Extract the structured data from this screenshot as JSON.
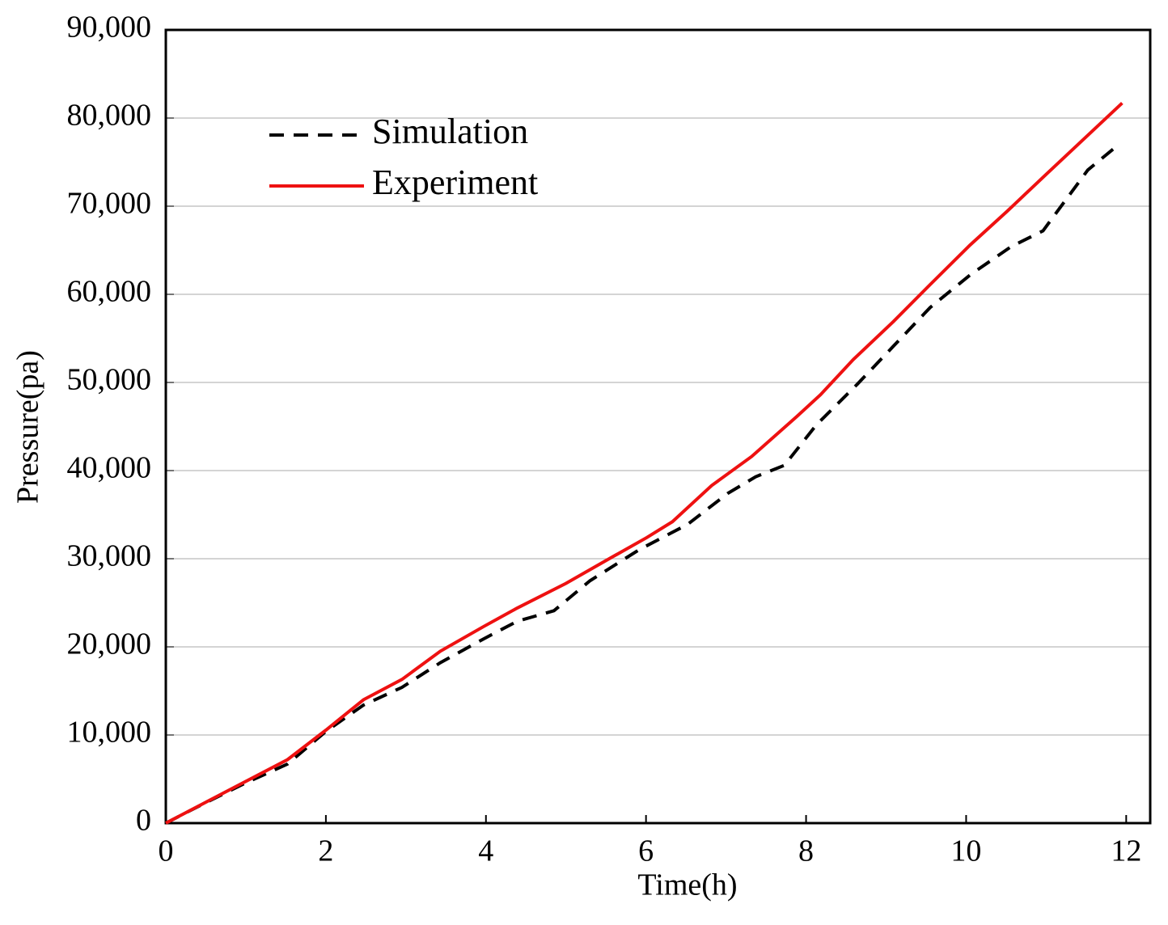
{
  "chart_data": {
    "type": "line",
    "x_label": "Time(h)",
    "y_label": "Pressure(pa)",
    "xlim": [
      0,
      12.3
    ],
    "xticks": [
      0,
      2,
      4,
      6,
      8,
      10,
      12
    ],
    "ylim": [
      0,
      90000
    ],
    "yticks": [
      0,
      {
        "value": 10000,
        "label": "10,000"
      },
      {
        "value": 20000,
        "label": "20,000"
      },
      {
        "value": 30000,
        "label": "30,000"
      },
      {
        "value": 40000,
        "label": "40,000"
      },
      {
        "value": 50000,
        "label": "50,000"
      },
      {
        "value": 60000,
        "label": "60,000"
      },
      {
        "value": 70000,
        "label": "70,000"
      },
      {
        "value": 80000,
        "label": "80,000"
      },
      {
        "value": 90000,
        "label": "90,000"
      }
    ],
    "grid": true,
    "legend": "upper left",
    "series": [
      {
        "name": "Simulation",
        "color": "#000000",
        "dash": true,
        "x": [
          0,
          0.45,
          0.96,
          1.52,
          2.0,
          2.47,
          2.95,
          3.43,
          3.97,
          4.39,
          4.85,
          5.3,
          5.91,
          6.52,
          7.02,
          7.37,
          7.73,
          8.13,
          8.64,
          9.09,
          9.55,
          10.05,
          10.56,
          10.96,
          11.52,
          11.92
        ],
        "values": [
          0,
          2100,
          4400,
          6700,
          10400,
          13400,
          15400,
          18200,
          20900,
          22900,
          24100,
          27500,
          31000,
          33900,
          37400,
          39300,
          40600,
          45200,
          49800,
          54100,
          58500,
          62200,
          65400,
          67200,
          74100,
          77100
        ]
      },
      {
        "name": "Experiment",
        "color": "#ee1111",
        "dash": false,
        "x": [
          0,
          1.52,
          2.0,
          2.47,
          2.95,
          3.43,
          3.97,
          4.39,
          5.0,
          5.56,
          6.01,
          6.33,
          6.82,
          7.32,
          7.88,
          8.18,
          8.59,
          9.09,
          9.55,
          10.05,
          10.51,
          11.01,
          11.95
        ],
        "values": [
          0,
          7200,
          10550,
          14000,
          16300,
          19500,
          22300,
          24400,
          27200,
          30100,
          32400,
          34200,
          38300,
          41600,
          46100,
          48600,
          52600,
          56900,
          61100,
          65600,
          69400,
          73700,
          81700
        ]
      }
    ]
  }
}
